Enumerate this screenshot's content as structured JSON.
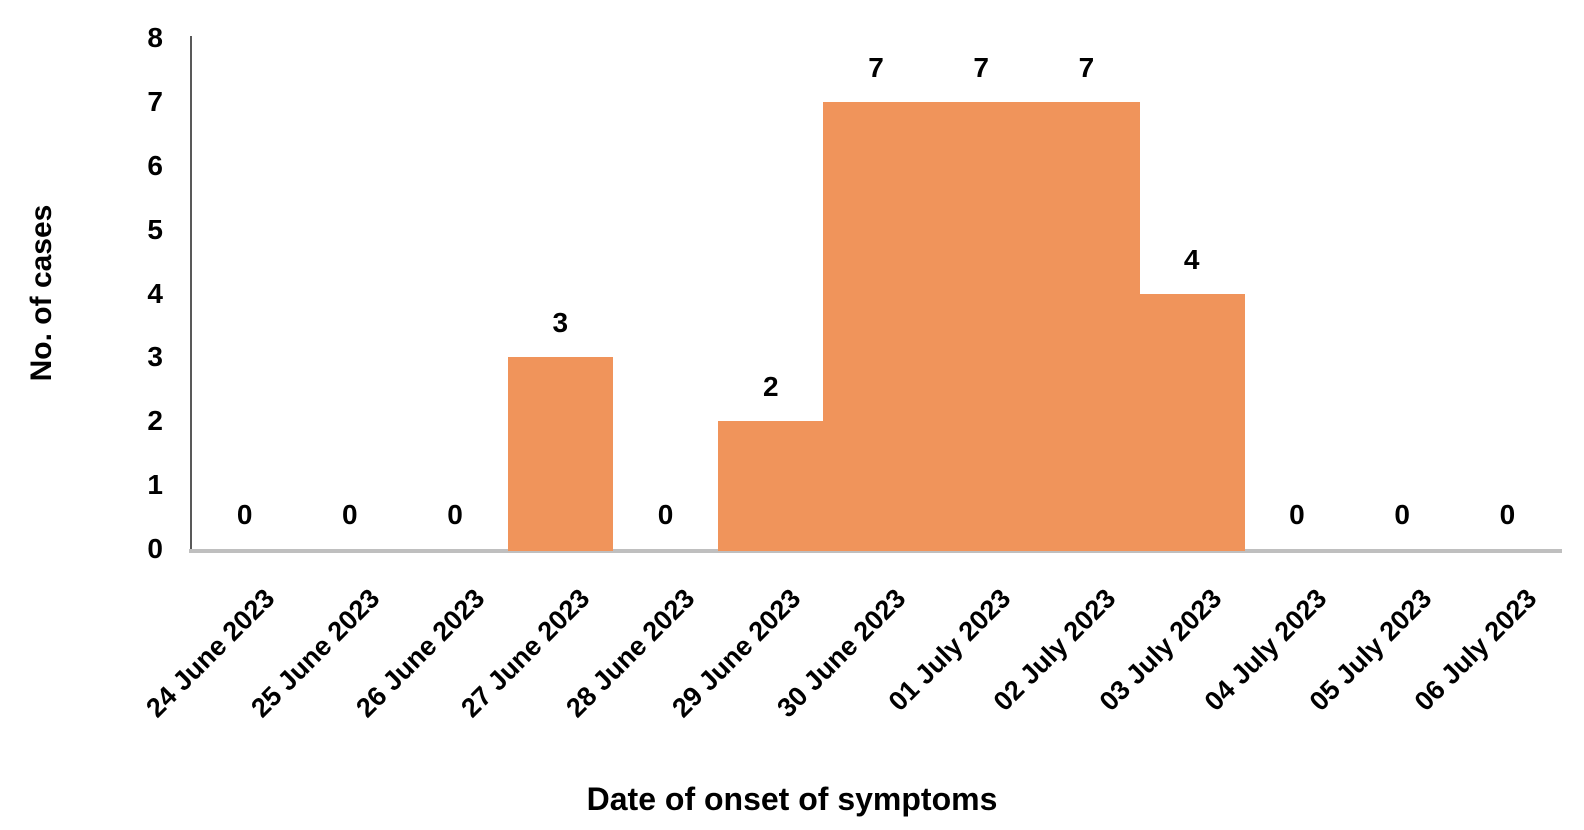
{
  "chart_data": {
    "type": "bar",
    "title": "",
    "xlabel": "Date of onset of symptoms",
    "ylabel": "No. of cases",
    "categories": [
      "24 June 2023",
      "25 June 2023",
      "26 June 2023",
      "27 June 2023",
      "28 June 2023",
      "29 June 2023",
      "30 June 2023",
      "01 July 2023",
      "02 July 2023",
      "03 July 2023",
      "04 July 2023",
      "05 July 2023",
      "06 July 2023"
    ],
    "values": [
      0,
      0,
      0,
      3,
      0,
      2,
      7,
      7,
      7,
      4,
      0,
      0,
      0
    ],
    "data_labels": [
      0,
      0,
      0,
      3,
      0,
      2,
      7,
      7,
      7,
      4,
      0,
      0,
      0
    ],
    "ylim": [
      0,
      8
    ],
    "yticks": [
      0,
      1,
      2,
      3,
      4,
      5,
      6,
      7,
      8
    ],
    "bar_gap_percent": 0,
    "grid": "off",
    "legend": "none",
    "colors": {
      "bar": "#F0945B",
      "y_axis_line": "#595959",
      "x_axis_line": "#BFBFBF",
      "text": "#000000",
      "background": "#FFFFFF"
    }
  }
}
